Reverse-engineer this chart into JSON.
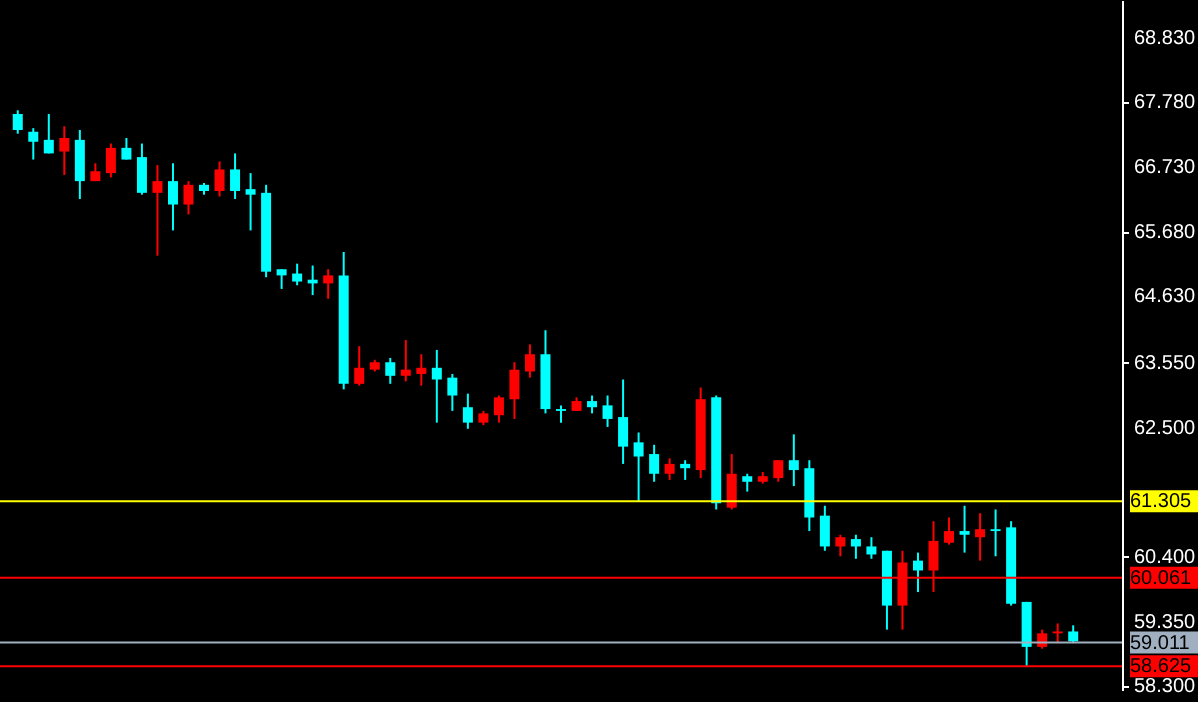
{
  "chart_data": {
    "type": "candlestick",
    "categories": [
      null,
      null,
      null,
      null,
      null,
      null,
      null,
      null,
      null,
      null,
      null,
      null,
      null,
      null,
      null,
      null,
      null,
      null,
      null,
      null,
      null,
      null,
      null,
      null,
      null,
      null,
      null,
      null,
      null,
      null,
      null,
      null,
      null,
      null,
      null,
      null,
      null,
      null,
      null,
      null,
      null,
      null,
      null,
      null,
      null,
      null,
      null,
      null,
      null,
      null,
      null,
      null,
      null,
      null,
      null,
      null,
      null,
      null,
      null,
      null,
      null,
      null,
      null,
      null,
      null,
      null,
      null,
      null,
      null
    ],
    "ohlc": [
      [
        67.59,
        67.65,
        67.27,
        67.33
      ],
      [
        67.3,
        67.36,
        66.85,
        67.14
      ],
      [
        67.17,
        67.59,
        66.95,
        66.95
      ],
      [
        66.98,
        67.39,
        66.6,
        67.2
      ],
      [
        67.17,
        67.33,
        66.21,
        66.5
      ],
      [
        66.5,
        66.79,
        66.5,
        66.66
      ],
      [
        66.63,
        67.11,
        66.56,
        67.04
      ],
      [
        67.04,
        67.2,
        66.85,
        66.85
      ],
      [
        66.89,
        67.11,
        66.28,
        66.31
      ],
      [
        66.31,
        66.76,
        65.29,
        66.5
      ],
      [
        66.5,
        66.79,
        65.7,
        66.12
      ],
      [
        66.12,
        66.5,
        65.96,
        66.44
      ],
      [
        66.44,
        66.47,
        66.28,
        66.34
      ],
      [
        66.34,
        66.82,
        66.25,
        66.69
      ],
      [
        66.69,
        66.95,
        66.21,
        66.34
      ],
      [
        66.37,
        66.63,
        65.7,
        66.28
      ],
      [
        66.31,
        66.44,
        64.94,
        65.03
      ],
      [
        65.07,
        65.07,
        64.75,
        64.97
      ],
      [
        65.0,
        65.16,
        64.81,
        64.87
      ],
      [
        64.9,
        65.13,
        64.65,
        64.84
      ],
      [
        64.84,
        65.07,
        64.59,
        64.97
      ],
      [
        64.97,
        65.35,
        63.12,
        63.21
      ],
      [
        63.21,
        63.82,
        63.18,
        63.47
      ],
      [
        63.44,
        63.6,
        63.41,
        63.56
      ],
      [
        63.56,
        63.63,
        63.21,
        63.34
      ],
      [
        63.34,
        63.92,
        63.25,
        63.44
      ],
      [
        63.37,
        63.69,
        63.18,
        63.47
      ],
      [
        63.47,
        63.76,
        62.58,
        63.28
      ],
      [
        63.31,
        63.37,
        62.77,
        63.02
      ],
      [
        62.83,
        63.05,
        62.48,
        62.58
      ],
      [
        62.58,
        62.77,
        62.54,
        62.73
      ],
      [
        62.7,
        63.02,
        62.58,
        62.99
      ],
      [
        62.96,
        63.56,
        62.64,
        63.44
      ],
      [
        63.41,
        63.85,
        63.31,
        63.69
      ],
      [
        63.69,
        64.08,
        62.73,
        62.8
      ],
      [
        62.8,
        62.86,
        62.58,
        62.77
      ],
      [
        62.77,
        62.99,
        62.77,
        62.93
      ],
      [
        62.93,
        63.02,
        62.73,
        62.83
      ],
      [
        62.86,
        63.02,
        62.51,
        62.64
      ],
      [
        62.67,
        63.28,
        61.91,
        62.19
      ],
      [
        62.26,
        62.42,
        61.3,
        62.03
      ],
      [
        62.07,
        62.22,
        61.62,
        61.75
      ],
      [
        61.75,
        62.0,
        61.65,
        61.91
      ],
      [
        61.91,
        61.97,
        61.65,
        61.84
      ],
      [
        61.81,
        63.15,
        61.68,
        62.96
      ],
      [
        62.99,
        63.02,
        61.17,
        61.27
      ],
      [
        61.2,
        62.07,
        61.17,
        61.75
      ],
      [
        61.71,
        61.75,
        61.46,
        61.62
      ],
      [
        61.62,
        61.78,
        61.59,
        61.71
      ],
      [
        61.68,
        61.97,
        61.62,
        61.97
      ],
      [
        61.97,
        62.39,
        61.55,
        61.81
      ],
      [
        61.84,
        61.97,
        60.82,
        61.04
      ],
      [
        61.07,
        61.23,
        60.5,
        60.57
      ],
      [
        60.57,
        60.76,
        60.41,
        60.72
      ],
      [
        60.69,
        60.76,
        60.37,
        60.57
      ],
      [
        60.57,
        60.72,
        60.37,
        60.44
      ],
      [
        60.5,
        60.5,
        59.22,
        59.61
      ],
      [
        59.61,
        60.5,
        59.22,
        60.31
      ],
      [
        60.34,
        60.47,
        59.83,
        60.18
      ],
      [
        60.18,
        60.98,
        59.83,
        60.66
      ],
      [
        60.63,
        61.04,
        60.6,
        60.82
      ],
      [
        60.82,
        61.23,
        60.47,
        60.76
      ],
      [
        60.72,
        61.11,
        60.34,
        60.85
      ],
      [
        60.85,
        61.17,
        60.41,
        60.82
      ],
      [
        60.88,
        60.98,
        59.61,
        59.64
      ],
      [
        59.67,
        59.67,
        58.62,
        58.94
      ],
      [
        58.94,
        59.22,
        58.91,
        59.16
      ],
      [
        59.16,
        59.32,
        59.0,
        59.19
      ],
      [
        59.19,
        59.29,
        59.0,
        59.03
      ]
    ],
    "colors": [
      "#00ffff",
      "#00ffff",
      "#00ffff",
      "#ff0000",
      "#00ffff",
      "#ff0000",
      "#ff0000",
      "#00ffff",
      "#00ffff",
      "#ff0000",
      "#00ffff",
      "#ff0000",
      "#00ffff",
      "#ff0000",
      "#00ffff",
      "#00ffff",
      "#00ffff",
      "#00ffff",
      "#00ffff",
      "#00ffff",
      "#ff0000",
      "#00ffff",
      "#ff0000",
      "#ff0000",
      "#00ffff",
      "#ff0000",
      "#ff0000",
      "#00ffff",
      "#00ffff",
      "#00ffff",
      "#ff0000",
      "#ff0000",
      "#ff0000",
      "#ff0000",
      "#00ffff",
      "#00ffff",
      "#ff0000",
      "#00ffff",
      "#00ffff",
      "#00ffff",
      "#00ffff",
      "#00ffff",
      "#ff0000",
      "#00ffff",
      "#ff0000",
      "#00ffff",
      "#ff0000",
      "#00ffff",
      "#ff0000",
      "#ff0000",
      "#00ffff",
      "#00ffff",
      "#00ffff",
      "#ff0000",
      "#00ffff",
      "#00ffff",
      "#00ffff",
      "#ff0000",
      "#00ffff",
      "#ff0000",
      "#ff0000",
      "#00ffff",
      "#ff0000",
      "#00ffff",
      "#00ffff",
      "#00ffff",
      "#ff0000",
      "#ff0000",
      "#00ffff"
    ],
    "ylim": [
      58.24,
      69.44
    ],
    "yticks": [
      {
        "value": 68.83,
        "label": "68.830"
      },
      {
        "value": 67.78,
        "label": "67.780"
      },
      {
        "value": 66.73,
        "label": "66.730"
      },
      {
        "value": 65.68,
        "label": "65.680"
      },
      {
        "value": 64.63,
        "label": "64.630"
      },
      {
        "value": 63.55,
        "label": "63.550"
      },
      {
        "value": 62.5,
        "label": "62.500"
      },
      {
        "value": 60.4,
        "label": "60.400"
      },
      {
        "value": 59.35,
        "label": "59.350"
      },
      {
        "value": 58.3,
        "label": "58.300"
      }
    ],
    "ref_lines": [
      {
        "axis": "y",
        "value": 61.305,
        "label": "61.305",
        "color": "#ffff00"
      },
      {
        "axis": "y",
        "value": 60.061,
        "label": "60.061",
        "color": "#ff0000"
      },
      {
        "axis": "y",
        "value": 59.011,
        "label": "59.011",
        "color": "#a0b0c0"
      },
      {
        "axis": "y",
        "value": 58.625,
        "label": "58.625",
        "color": "#ff0000"
      }
    ],
    "tick_labels": "y",
    "grid": false
  }
}
